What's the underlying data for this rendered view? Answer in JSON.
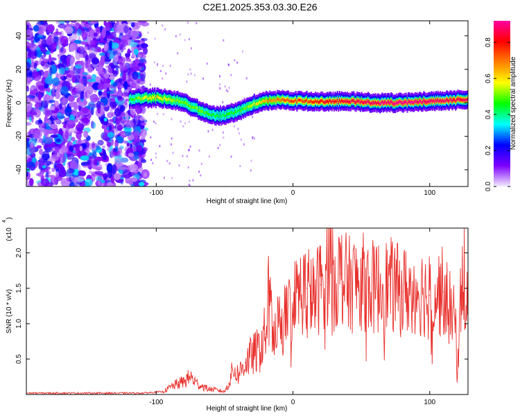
{
  "title": "C2E1.2025.353.03.30.E26",
  "chart_data": [
    {
      "type": "heatmap",
      "xlabel": "Height of straight line (km)",
      "ylabel": "Frequency (Hz)",
      "xlim": [
        -195,
        128
      ],
      "ylim": [
        -50,
        49
      ],
      "xticks": [
        -100,
        0,
        100
      ],
      "yticks": [
        -40,
        -20,
        0,
        20,
        40
      ],
      "colorbar": {
        "label": "Normalized spectral amplitude",
        "range": [
          0.0,
          0.92
        ],
        "ticks": [
          0.0,
          0.2,
          0.4,
          0.6,
          0.8
        ],
        "colors": [
          "#f4eefc",
          "#7e00ff",
          "#0000ff",
          "#00ffff",
          "#00ff00",
          "#ffff00",
          "#ff8000",
          "#ff0000",
          "#ff00a0"
        ]
      },
      "noise_region_x": [
        -195,
        -108
      ],
      "ridge": {
        "x": [
          -120,
          -110,
          -100,
          -90,
          -80,
          -70,
          -60,
          -55,
          -50,
          -45,
          -40,
          -35,
          -30,
          -25,
          -20,
          -10,
          0,
          10,
          20,
          40,
          60,
          80,
          100,
          128
        ],
        "freq": [
          2,
          3,
          3,
          2,
          0,
          -4,
          -7,
          -8,
          -7,
          -6,
          -5,
          -3,
          -1,
          0,
          1,
          2,
          1,
          1,
          1,
          1,
          0,
          0,
          1,
          2
        ],
        "amplitude": [
          0.45,
          0.55,
          0.6,
          0.55,
          0.5,
          0.5,
          0.45,
          0.45,
          0.45,
          0.45,
          0.45,
          0.5,
          0.55,
          0.6,
          0.65,
          0.7,
          0.75,
          0.75,
          0.8,
          0.85,
          0.88,
          0.9,
          0.88,
          0.85
        ]
      }
    },
    {
      "type": "line",
      "xlabel": "Height of straight line (km)",
      "ylabel": "SNR (10 * v/v)",
      "y_multiplier": "(x10",
      "y_multiplier_exp": "4",
      "xlim": [
        -195,
        128
      ],
      "ylim": [
        0,
        2.35
      ],
      "xticks": [
        -100,
        0,
        100
      ],
      "yticks": [
        0.5,
        1.0,
        1.5,
        2.0
      ],
      "series": [
        {
          "name": "SNR",
          "color": "#e8302c",
          "x": [
            -195,
            -170,
            -140,
            -110,
            -95,
            -88,
            -80,
            -75,
            -70,
            -62,
            -55,
            -50,
            -47,
            -44,
            -40,
            -35,
            -30,
            -25,
            -20,
            -18,
            -15,
            -10,
            -5,
            0,
            5,
            10,
            15,
            20,
            25,
            28,
            30,
            35,
            40,
            50,
            60,
            70,
            80,
            90,
            100,
            110,
            119,
            120,
            124,
            128
          ],
          "y": [
            0.02,
            0.02,
            0.02,
            0.02,
            0.04,
            0.12,
            0.18,
            0.25,
            0.15,
            0.08,
            0.06,
            0.04,
            0.15,
            0.35,
            0.28,
            0.45,
            0.55,
            0.62,
            0.85,
            1.45,
            0.9,
            1.05,
            1.1,
            1.3,
            1.45,
            1.5,
            1.35,
            1.55,
            1.75,
            2.3,
            1.6,
            1.7,
            1.55,
            1.6,
            1.5,
            1.55,
            1.45,
            1.5,
            1.4,
            1.45,
            1.0,
            0.3,
            1.9,
            1.3
          ]
        }
      ]
    }
  ]
}
